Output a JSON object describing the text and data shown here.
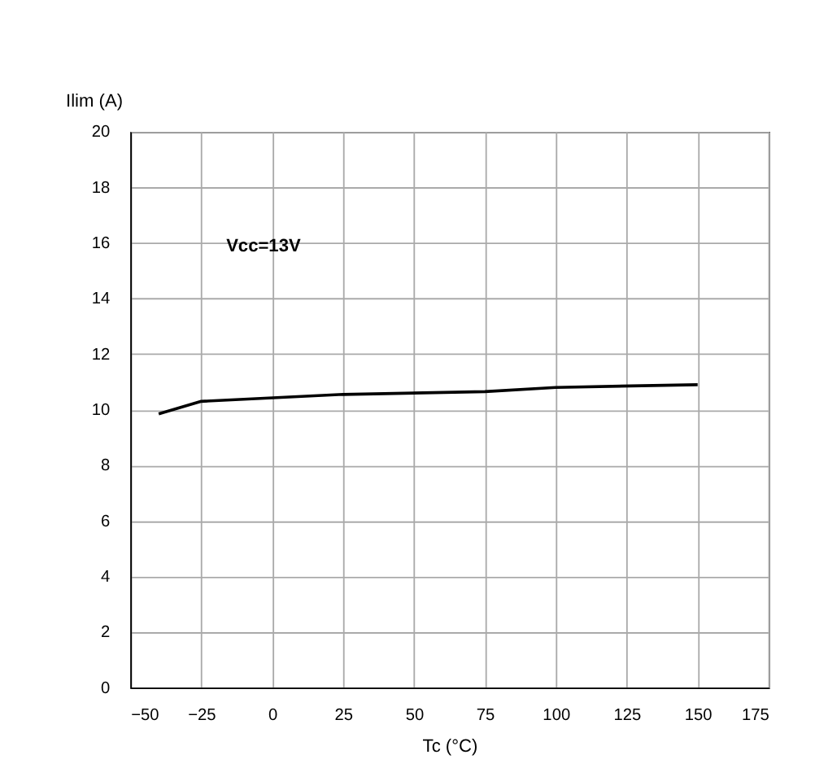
{
  "chart_data": {
    "type": "line",
    "xlabel": "Tc (°C)",
    "ylabel": "Ilim (A)",
    "x": [
      -40,
      -25,
      25,
      75,
      100,
      150
    ],
    "series": [
      {
        "color": "#000000",
        "values": [
          9.85,
          10.3,
          10.55,
          10.65,
          10.8,
          10.9
        ]
      }
    ],
    "xlim": [
      -50,
      175
    ],
    "xticks": [
      -50,
      -25,
      0,
      25,
      50,
      75,
      100,
      125,
      150,
      175
    ],
    "ylim": [
      0,
      20
    ],
    "yticks": [
      0,
      2,
      4,
      6,
      8,
      10,
      12,
      14,
      16,
      18,
      20
    ],
    "grid": true,
    "marker": "none",
    "line_style": "solid",
    "annotations": [
      "Vcc=13V"
    ]
  }
}
